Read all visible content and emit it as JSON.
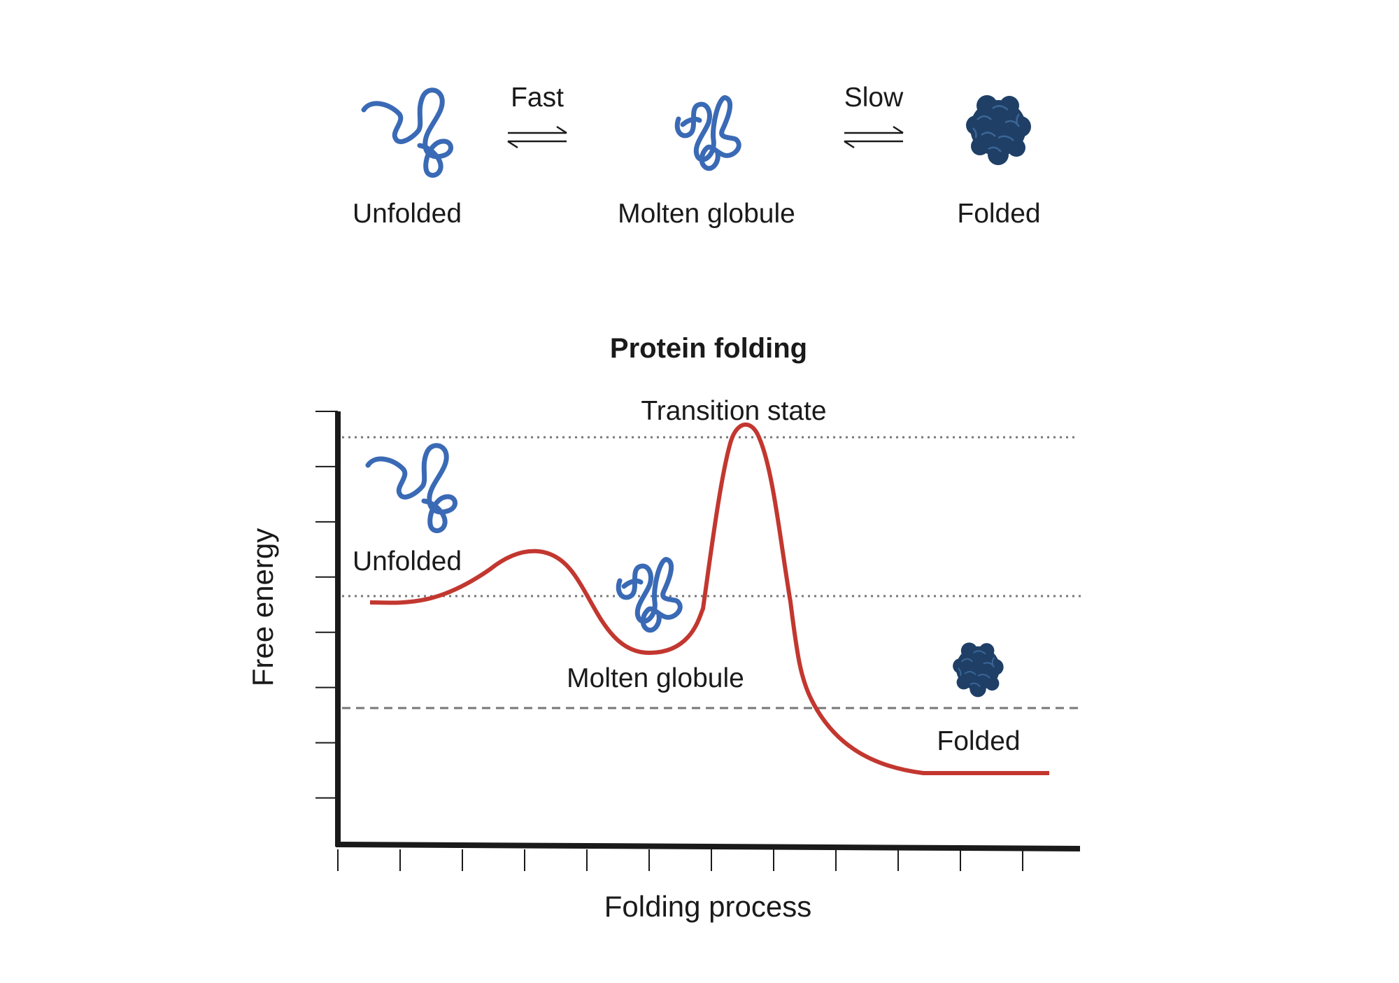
{
  "scheme": {
    "states": [
      {
        "label": "Unfolded",
        "icon": "unfolded-protein-icon"
      },
      {
        "label": "Molten globule",
        "icon": "molten-globule-icon"
      },
      {
        "label": "Folded",
        "icon": "folded-protein-icon"
      }
    ],
    "transitions": [
      {
        "label": "Fast",
        "icon": "equilibrium-arrows-icon"
      },
      {
        "label": "Slow",
        "icon": "equilibrium-arrows-icon"
      }
    ]
  },
  "chart": {
    "title": "Protein folding",
    "xlabel": "Folding process",
    "ylabel": "Free energy",
    "annotations": {
      "unfolded": "Unfolded",
      "molten_globule": "Molten globule",
      "transition_state": "Transition state",
      "folded": "Folded"
    }
  },
  "colors": {
    "protein": "#3a6ab5",
    "folded_protein": "#1f3f66",
    "curve": "#c2372f",
    "axis": "#1a1a1a",
    "reference_line": "#777777"
  },
  "chart_data": {
    "type": "line",
    "title": "Protein folding",
    "xlabel": "Folding process",
    "ylabel": "Free energy",
    "x_ticks": 12,
    "y_ticks": 8,
    "series": [
      {
        "x": [
          0.5,
          1.0,
          1.5,
          2.0,
          2.5,
          3.0,
          3.5,
          4.0,
          4.5,
          5.0,
          5.5,
          6.0,
          6.5,
          7.0,
          7.5,
          8.0,
          8.5,
          9.0,
          9.5,
          10.0,
          11.5
        ],
        "y": [
          3.9,
          3.9,
          4.1,
          4.8,
          4.8,
          3.9,
          3.1,
          3.2,
          6.5,
          6.6,
          4.0,
          2.3,
          1.6,
          1.2,
          1.2,
          1.2,
          1.2,
          1.2,
          1.2,
          1.2,
          1.2
        ]
      }
    ],
    "reference_lines": [
      {
        "y": 6.5,
        "style": "dotted"
      },
      {
        "y": 4.0,
        "style": "dotted"
      },
      {
        "y": 2.2,
        "style": "dashed"
      }
    ],
    "grid": false
  }
}
